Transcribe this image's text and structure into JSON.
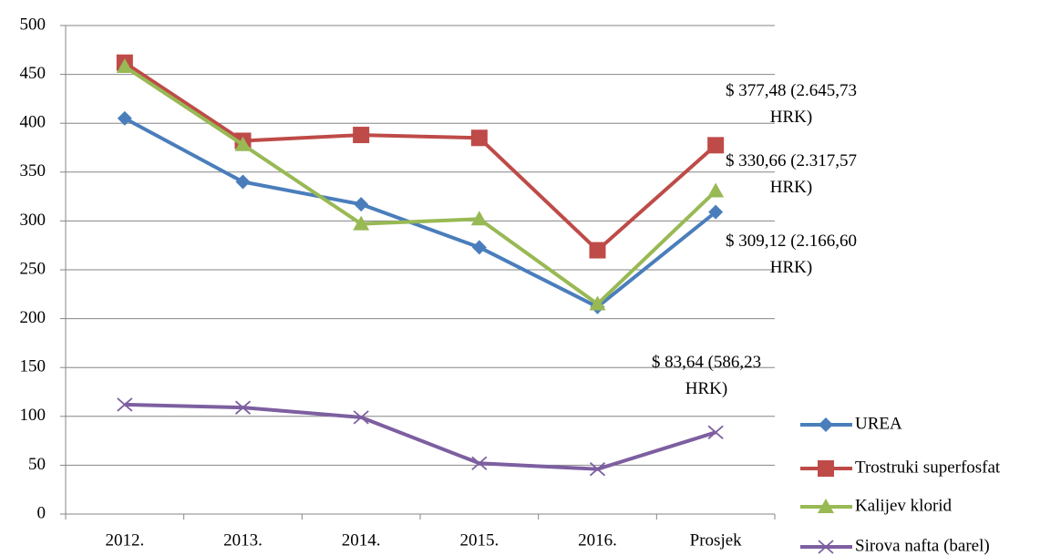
{
  "chart_data": {
    "type": "line",
    "categories": [
      "2012.",
      "2013.",
      "2014.",
      "2015.",
      "2016.",
      "Prosjek"
    ],
    "series": [
      {
        "name": "UREA",
        "color": "#4a7ebb",
        "marker": "diamond",
        "values": [
          405,
          340,
          317,
          273,
          212,
          309.12
        ],
        "value_labels": [
          null,
          null,
          null,
          null,
          null,
          "$ 309,12 (2.166,60 HRK)"
        ]
      },
      {
        "name": "Trostruki superfosfat",
        "color": "#be4b48",
        "marker": "square",
        "values": [
          462,
          382,
          388,
          385,
          270,
          377.48
        ],
        "value_labels": [
          null,
          null,
          null,
          null,
          null,
          "$ 377,48 (2.645,73 HRK)"
        ]
      },
      {
        "name": "Kalijev klorid",
        "color": "#98b954",
        "marker": "triangle",
        "values": [
          458,
          378,
          297,
          302,
          215,
          330.66
        ],
        "value_labels": [
          null,
          null,
          null,
          null,
          null,
          "$ 330,66 (2.317,57 HRK)"
        ]
      },
      {
        "name": "Sirova nafta (barel)",
        "color": "#7d5fa0",
        "marker": "x",
        "values": [
          112,
          109,
          99,
          52,
          46,
          83.64
        ],
        "value_labels": [
          null,
          null,
          null,
          null,
          null,
          "$ 83,64 (586,23 HRK)"
        ]
      }
    ],
    "ylim": [
      0,
      500
    ],
    "yticks": [
      0,
      50,
      100,
      150,
      200,
      250,
      300,
      350,
      400,
      450,
      500
    ],
    "grid": true,
    "legend": "right"
  }
}
